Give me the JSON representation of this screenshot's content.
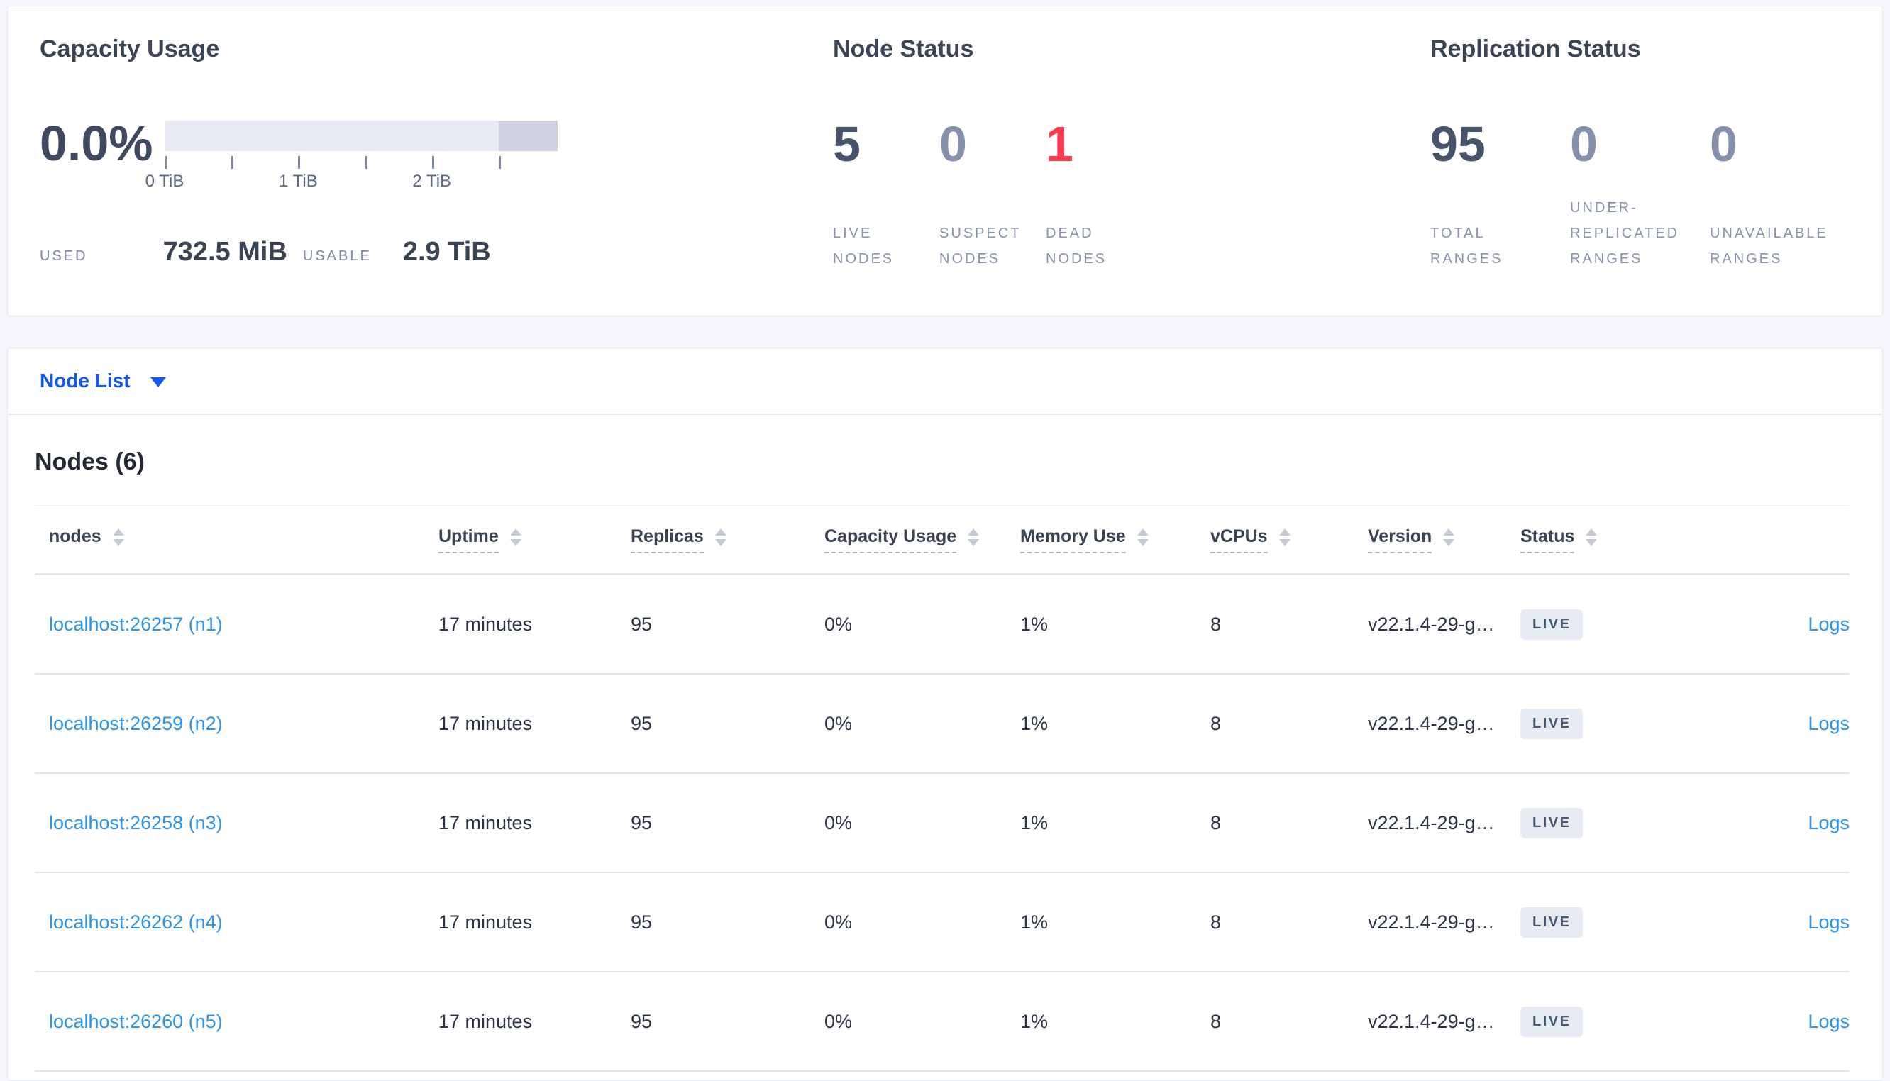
{
  "summary": {
    "capacity": {
      "title": "Capacity Usage",
      "percent_used": "0.0%",
      "used_label": "USED",
      "used_value": "732.5 MiB",
      "usable_label": "USABLE",
      "usable_value": "2.9 TiB",
      "axis_ticks_pct": [
        0,
        17,
        34,
        51,
        68,
        85
      ],
      "axis_labels": [
        {
          "text": "0 TiB",
          "pos_pct": 0
        },
        {
          "text": "1 TiB",
          "pos_pct": 34
        },
        {
          "text": "2 TiB",
          "pos_pct": 68
        }
      ],
      "reserved_segment": {
        "start_pct": 85,
        "width_pct": 15
      }
    },
    "node_status": {
      "title": "Node Status",
      "stats": [
        {
          "value": "5",
          "label_lines": [
            "LIVE",
            "NODES"
          ],
          "tone": "dark"
        },
        {
          "value": "0",
          "label_lines": [
            "SUSPECT",
            "NODES"
          ],
          "tone": "muted"
        },
        {
          "value": "1",
          "label_lines": [
            "DEAD",
            "NODES"
          ],
          "tone": "red"
        }
      ]
    },
    "replication_status": {
      "title": "Replication Status",
      "stats": [
        {
          "value": "95",
          "label_lines": [
            "TOTAL",
            "RANGES"
          ],
          "tone": "dark"
        },
        {
          "value": "0",
          "label_lines": [
            "UNDER-",
            "REPLICATED",
            "RANGES"
          ],
          "tone": "muted"
        },
        {
          "value": "0",
          "label_lines": [
            "UNAVAILABLE",
            "RANGES"
          ],
          "tone": "muted"
        }
      ]
    }
  },
  "node_list": {
    "dropdown_label": "Node List",
    "section_title": "Nodes (6)",
    "columns": [
      {
        "label": "nodes",
        "underlined": false,
        "sortable": true
      },
      {
        "label": "Uptime",
        "underlined": true,
        "sortable": true
      },
      {
        "label": "Replicas",
        "underlined": true,
        "sortable": true
      },
      {
        "label": "Capacity Usage",
        "underlined": true,
        "sortable": true
      },
      {
        "label": "Memory Use",
        "underlined": true,
        "sortable": true
      },
      {
        "label": "vCPUs",
        "underlined": true,
        "sortable": true
      },
      {
        "label": "Version",
        "underlined": true,
        "sortable": true
      },
      {
        "label": "Status",
        "underlined": true,
        "sortable": true
      },
      {
        "label": "",
        "underlined": false,
        "sortable": false
      }
    ],
    "rows": [
      {
        "node": "localhost:26257 (n1)",
        "uptime": "17 minutes",
        "replicas": "95",
        "capacity_usage": "0%",
        "memory_use": "1%",
        "vcpus": "8",
        "version": "v22.1.4-29-g…",
        "status": "LIVE",
        "logs": "Logs"
      },
      {
        "node": "localhost:26259 (n2)",
        "uptime": "17 minutes",
        "replicas": "95",
        "capacity_usage": "0%",
        "memory_use": "1%",
        "vcpus": "8",
        "version": "v22.1.4-29-g…",
        "status": "LIVE",
        "logs": "Logs"
      },
      {
        "node": "localhost:26258 (n3)",
        "uptime": "17 minutes",
        "replicas": "95",
        "capacity_usage": "0%",
        "memory_use": "1%",
        "vcpus": "8",
        "version": "v22.1.4-29-g…",
        "status": "LIVE",
        "logs": "Logs"
      },
      {
        "node": "localhost:26262 (n4)",
        "uptime": "17 minutes",
        "replicas": "95",
        "capacity_usage": "0%",
        "memory_use": "1%",
        "vcpus": "8",
        "version": "v22.1.4-29-g…",
        "status": "LIVE",
        "logs": "Logs"
      },
      {
        "node": "localhost:26260 (n5)",
        "uptime": "17 minutes",
        "replicas": "95",
        "capacity_usage": "0%",
        "memory_use": "1%",
        "vcpus": "8",
        "version": "v22.1.4-29-g…",
        "status": "LIVE",
        "logs": "Logs"
      }
    ]
  },
  "icons": {
    "dropdown_caret": "chevron-down-icon",
    "column_sort": "sort-arrows-icon"
  },
  "colors": {
    "page_bg": "#f5f7fa",
    "card_border": "#e3e8ef",
    "title_text": "#394455",
    "stat_dark": "#47536a",
    "stat_muted": "#8591ab",
    "stat_red": "#fb3b52",
    "label_muted": "#7e89a9",
    "bar_light": "#e8ebf3",
    "bar_dark": "#cdd2de",
    "dropdown_blue": "#1457eb",
    "link_blue": "#2b95ec",
    "badge_bg": "#e7ebf2",
    "badge_text": "#475872"
  }
}
